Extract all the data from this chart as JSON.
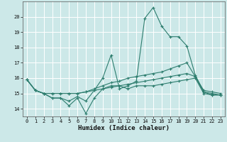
{
  "title": "",
  "xlabel": "Humidex (Indice chaleur)",
  "xlim": [
    -0.5,
    23.5
  ],
  "ylim": [
    13.5,
    21.0
  ],
  "yticks": [
    14,
    15,
    16,
    17,
    18,
    19,
    20
  ],
  "xticks": [
    0,
    1,
    2,
    3,
    4,
    5,
    6,
    7,
    8,
    9,
    10,
    11,
    12,
    13,
    14,
    15,
    16,
    17,
    18,
    19,
    20,
    21,
    22,
    23
  ],
  "bg_color": "#cce8e8",
  "grid_color": "#ffffff",
  "line_color": "#2d7d6e",
  "series": {
    "line1_x": [
      0,
      1,
      2,
      3,
      4,
      5,
      6,
      7,
      8,
      9,
      10,
      11,
      12,
      13,
      14,
      15,
      16,
      17,
      18,
      19,
      20,
      21,
      22,
      23
    ],
    "line1_y": [
      15.9,
      15.2,
      15.0,
      14.7,
      14.7,
      14.2,
      14.7,
      13.7,
      14.7,
      15.3,
      15.5,
      15.5,
      15.3,
      15.5,
      15.5,
      15.5,
      15.6,
      15.7,
      15.8,
      15.9,
      16.0,
      15.0,
      14.9,
      14.9
    ],
    "line2_x": [
      0,
      1,
      2,
      3,
      4,
      5,
      6,
      7,
      8,
      9,
      10,
      11,
      12,
      13,
      14,
      15,
      16,
      17,
      18,
      19,
      20,
      21,
      22,
      23
    ],
    "line2_y": [
      15.9,
      15.2,
      15.0,
      14.7,
      14.7,
      14.5,
      14.8,
      14.5,
      15.2,
      16.0,
      17.5,
      15.3,
      15.5,
      15.8,
      19.9,
      20.6,
      19.4,
      18.7,
      18.7,
      18.1,
      16.2,
      15.1,
      14.9,
      14.9
    ],
    "line3_x": [
      0,
      1,
      2,
      3,
      4,
      5,
      6,
      7,
      8,
      9,
      10,
      11,
      12,
      13,
      14,
      15,
      16,
      17,
      18,
      19,
      20,
      21,
      22,
      23
    ],
    "line3_y": [
      15.9,
      15.2,
      15.0,
      15.0,
      15.0,
      15.0,
      15.0,
      15.1,
      15.3,
      15.5,
      15.7,
      15.8,
      16.0,
      16.1,
      16.2,
      16.3,
      16.4,
      16.6,
      16.8,
      17.0,
      16.1,
      15.2,
      15.1,
      15.0
    ],
    "line4_x": [
      0,
      1,
      2,
      3,
      4,
      5,
      6,
      7,
      8,
      9,
      10,
      11,
      12,
      13,
      14,
      15,
      16,
      17,
      18,
      19,
      20,
      21,
      22,
      23
    ],
    "line4_y": [
      15.9,
      15.2,
      15.0,
      15.0,
      15.0,
      15.0,
      15.0,
      15.1,
      15.2,
      15.3,
      15.4,
      15.5,
      15.6,
      15.7,
      15.8,
      15.9,
      16.0,
      16.1,
      16.2,
      16.3,
      16.1,
      15.1,
      15.0,
      14.9
    ]
  }
}
